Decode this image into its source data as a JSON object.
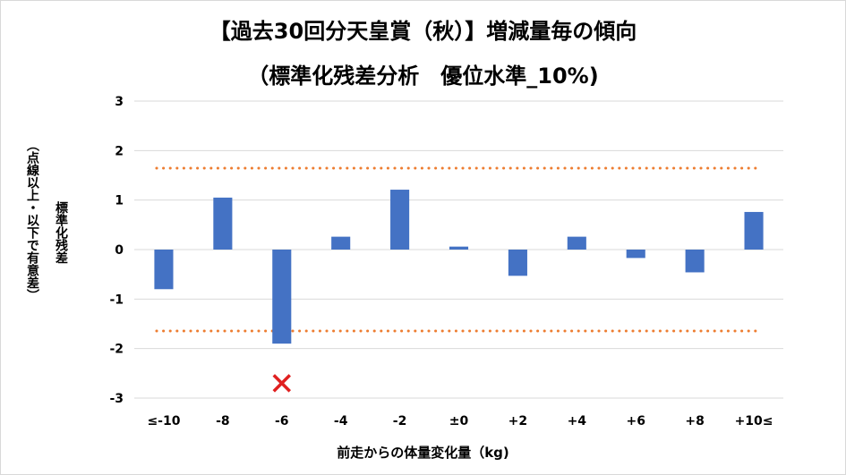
{
  "chart_data": {
    "type": "bar",
    "title_line1": "【過去30回分天皇賞（秋）】増減量毎の傾向",
    "title_line2": "（標準化残差分析　優位水準_10%)",
    "ylabel_line1": "標準化残差",
    "ylabel_line2": "（点線以上・以下で有意差）",
    "xlabel": "前走からの体量変化量（kg)",
    "categories": [
      "≤-10",
      "-8",
      "-6",
      "-4",
      "-2",
      "±0",
      "+2",
      "+4",
      "+6",
      "+8",
      "+10≤"
    ],
    "values": [
      -0.8,
      1.05,
      -1.9,
      0.26,
      1.21,
      0.06,
      -0.53,
      0.26,
      -0.17,
      -0.46,
      0.76
    ],
    "yticks": [
      "3",
      "2",
      "1",
      "0",
      "-1",
      "-2",
      "-3"
    ],
    "ylim": [
      -3,
      3
    ],
    "threshold_upper": 1.645,
    "threshold_lower": -1.645,
    "bar_color": "#4472c4",
    "threshold_color": "#ed7d31",
    "marker_color": "#e02020",
    "marker_category": "-6",
    "marker_value": -2.7,
    "grid": true
  }
}
